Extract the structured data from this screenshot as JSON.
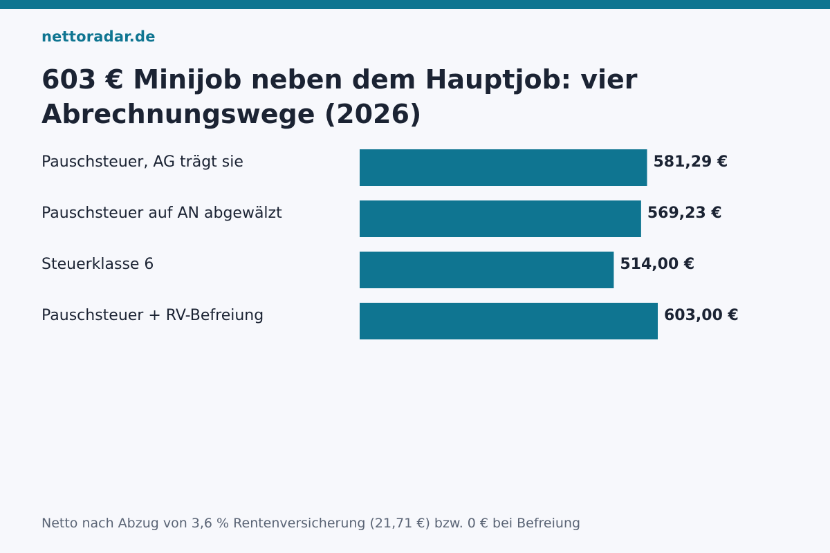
{
  "site": "nettoradar.de",
  "title": "603 € Minijob neben dem Hauptjob: vier Abrechnungswege (2026)",
  "note": "Netto nach Abzug von 3,6 % Rentenversicherung (21,71 €) bzw. 0 € bei Befreiung",
  "colors": {
    "accent": "#0f7591",
    "text": "#1b2333",
    "background": "#f7f8fc"
  },
  "chart_data": {
    "type": "bar",
    "orientation": "horizontal",
    "categories": [
      "Pauschsteuer, AG trägt sie",
      "Pauschsteuer auf AN abgewälzt",
      "Steuerklasse 6",
      "Pauschsteuer + RV-Befreiung"
    ],
    "values": [
      581.29,
      569.23,
      514.0,
      603.0
    ],
    "value_labels": [
      "581,29 €",
      "569,23 €",
      "514,00 €",
      "603,00 €"
    ],
    "xlim": [
      0,
      603
    ],
    "grid": false,
    "legend": "none"
  }
}
